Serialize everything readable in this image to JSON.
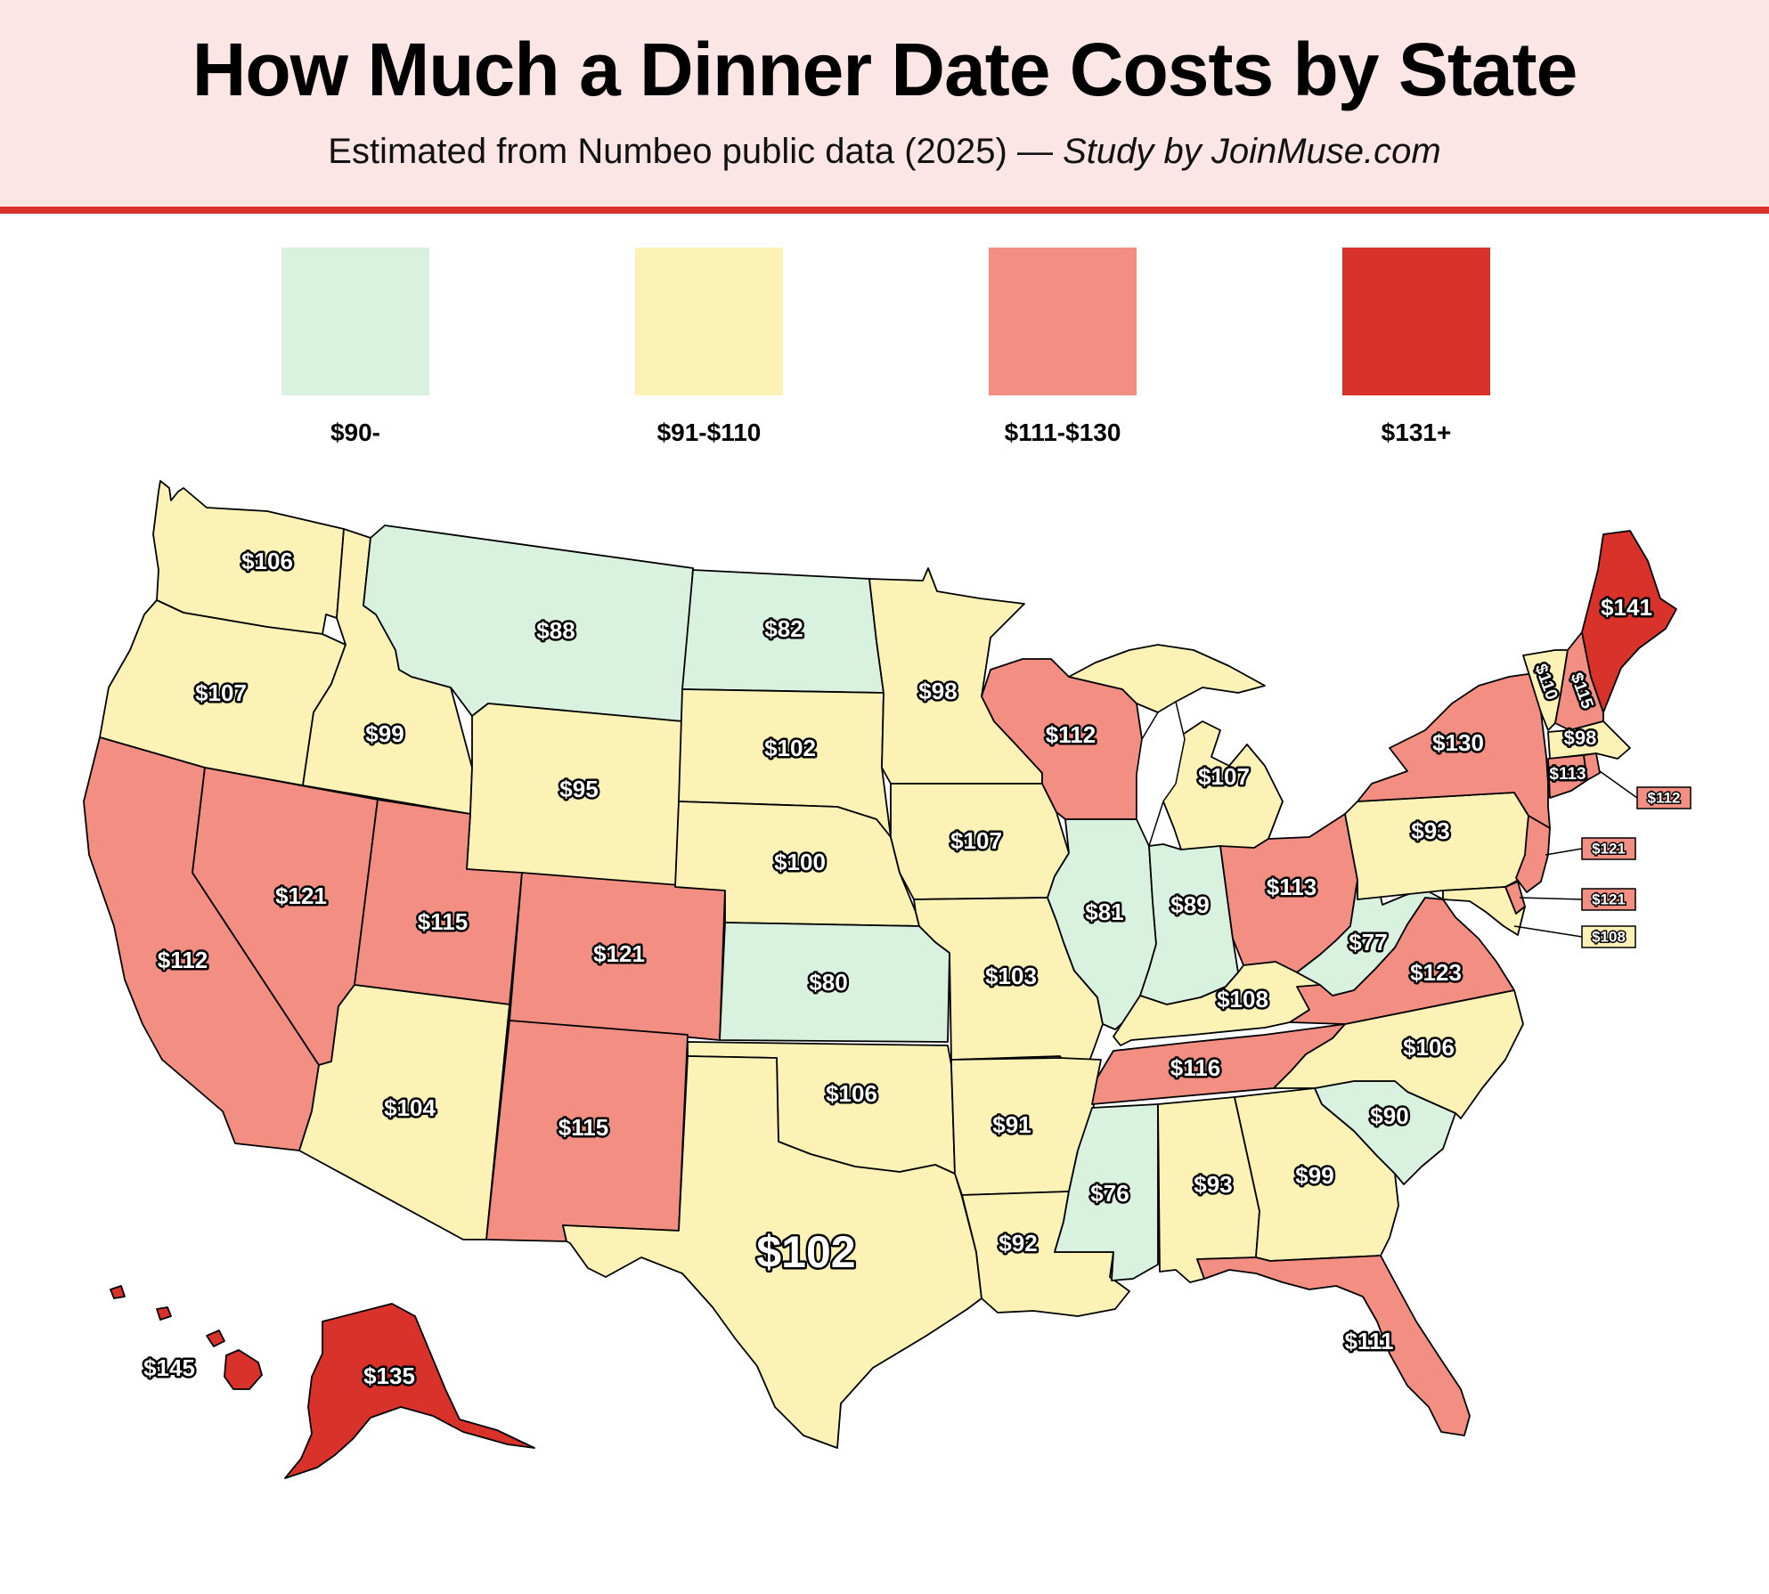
{
  "header": {
    "title": "How Much a Dinner Date Costs by State",
    "subtitle_main": "Estimated from Numbeo public data (2025) — ",
    "subtitle_credit": "Study by JoinMuse.com"
  },
  "legend": [
    {
      "label": "$90-",
      "color": "#d9f2df"
    },
    {
      "label": "$91-$110",
      "color": "#fdf2b5"
    },
    {
      "label": "$111-$130",
      "color": "#f28e82"
    },
    {
      "label": "$131+",
      "color": "#d9322b"
    }
  ],
  "states": [
    {
      "name": "Washington",
      "label": "$106"
    },
    {
      "name": "Oregon",
      "label": "$107"
    },
    {
      "name": "California",
      "label": "$112"
    },
    {
      "name": "Idaho",
      "label": "$99"
    },
    {
      "name": "Nevada",
      "label": "$121"
    },
    {
      "name": "Montana",
      "label": "$88"
    },
    {
      "name": "Wyoming",
      "label": "$95"
    },
    {
      "name": "Utah",
      "label": "$115"
    },
    {
      "name": "Arizona",
      "label": "$104"
    },
    {
      "name": "Colorado",
      "label": "$121"
    },
    {
      "name": "New Mexico",
      "label": "$115"
    },
    {
      "name": "North Dakota",
      "label": "$82"
    },
    {
      "name": "South Dakota",
      "label": "$102"
    },
    {
      "name": "Nebraska",
      "label": "$100"
    },
    {
      "name": "Kansas",
      "label": "$80"
    },
    {
      "name": "Oklahoma",
      "label": "$106"
    },
    {
      "name": "Texas",
      "label": "$102"
    },
    {
      "name": "Minnesota",
      "label": "$98"
    },
    {
      "name": "Iowa",
      "label": "$107"
    },
    {
      "name": "Missouri",
      "label": "$103"
    },
    {
      "name": "Arkansas",
      "label": "$91"
    },
    {
      "name": "Louisiana",
      "label": "$92"
    },
    {
      "name": "Wisconsin",
      "label": "$112"
    },
    {
      "name": "Illinois",
      "label": "$81"
    },
    {
      "name": "Michigan",
      "label": "$107"
    },
    {
      "name": "Indiana",
      "label": "$89"
    },
    {
      "name": "Ohio",
      "label": "$113"
    },
    {
      "name": "Kentucky",
      "label": "$108"
    },
    {
      "name": "Tennessee",
      "label": "$116"
    },
    {
      "name": "Mississippi",
      "label": "$76"
    },
    {
      "name": "Alabama",
      "label": "$93"
    },
    {
      "name": "Georgia",
      "label": "$99"
    },
    {
      "name": "Florida",
      "label": "$111"
    },
    {
      "name": "South Carolina",
      "label": "$90"
    },
    {
      "name": "North Carolina",
      "label": "$106"
    },
    {
      "name": "Virginia",
      "label": "$123"
    },
    {
      "name": "West Virginia",
      "label": "$77"
    },
    {
      "name": "Pennsylvania",
      "label": "$93"
    },
    {
      "name": "New York",
      "label": "$130"
    },
    {
      "name": "Vermont",
      "label": "$110"
    },
    {
      "name": "New Hampshire",
      "label": "$115"
    },
    {
      "name": "Maine",
      "label": "$141"
    },
    {
      "name": "Massachusetts",
      "label": "$98"
    },
    {
      "name": "Connecticut",
      "label": "$113"
    },
    {
      "name": "Rhode Island",
      "label": "$112"
    },
    {
      "name": "New Jersey",
      "label": "$121"
    },
    {
      "name": "Delaware",
      "label": "$121"
    },
    {
      "name": "Maryland",
      "label": "$108"
    },
    {
      "name": "Alaska",
      "label": "$135"
    },
    {
      "name": "Hawaii",
      "label": "$145"
    }
  ]
}
